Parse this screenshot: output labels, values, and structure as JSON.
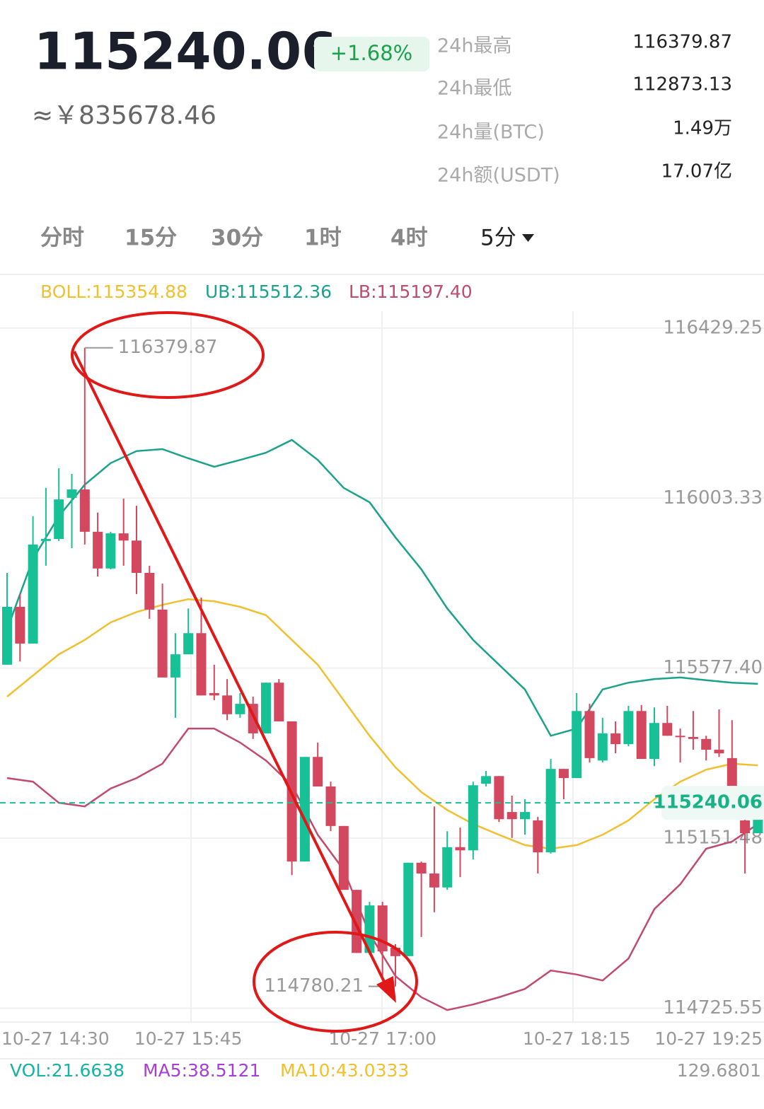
{
  "header": {
    "price": "115240.06",
    "change": "+1.68%",
    "cny": "≈￥835678.46",
    "stats": [
      {
        "label": "24h最高",
        "value": "116379.87"
      },
      {
        "label": "24h最低",
        "value": "112873.13"
      },
      {
        "label": "24h量(BTC)",
        "value": "1.49万"
      },
      {
        "label": "24h额(USDT)",
        "value": "17.07亿"
      }
    ],
    "tabs": [
      "分时",
      "15分",
      "30分",
      "1时",
      "4时",
      "5分"
    ]
  },
  "indicators": [
    "BOLL:115354.88",
    "UB:115512.36",
    "LB:115197.40"
  ],
  "volume": {
    "labels": [
      "VOL:21.6638",
      "MA5:38.5121",
      "MA10:43.0333"
    ],
    "axis_max": "129.6801"
  },
  "chart_data": {
    "type": "candlestick",
    "categories": [
      "10-27 14:30",
      null,
      null,
      null,
      null,
      null,
      null,
      null,
      null,
      null,
      null,
      null,
      null,
      null,
      "10-27 15:45",
      null,
      null,
      null,
      null,
      null,
      null,
      null,
      null,
      null,
      null,
      null,
      null,
      null,
      null,
      "10-27 17:00",
      null,
      null,
      null,
      null,
      null,
      null,
      null,
      null,
      null,
      null,
      null,
      null,
      null,
      null,
      "10-27 18:15",
      null,
      null,
      null,
      null,
      null,
      null,
      null,
      null,
      null,
      null,
      null,
      null,
      null,
      "10-27 19:25"
    ],
    "open": [
      115586,
      115731,
      115639,
      115896,
      115901,
      116004,
      116025,
      115919,
      115827,
      115915,
      115897,
      115816,
      115724,
      115554,
      115612,
      115665,
      115515,
      115509,
      115462,
      115488,
      115414,
      115541,
      115444,
      115093,
      115355,
      115281,
      115182,
      115022,
      114864,
      114983,
      114877,
      114856,
      115090,
      115063,
      115028,
      115129,
      115121,
      115288,
      115307,
      115217,
      115199,
      115196,
      115116,
      115325,
      115302,
      115470,
      115346,
      115414,
      115387,
      115470,
      115350,
      115440,
      115408,
      115405,
      115400,
      115373,
      115352,
      115196,
      115164
    ],
    "high": [
      115816,
      115763,
      115958,
      116029,
      116078,
      116064,
      116379.87,
      115967,
      115919,
      116002,
      115984,
      115834,
      115789,
      115665,
      115727,
      115754,
      115586,
      115550,
      115515,
      115506,
      115541,
      115550,
      115444,
      115355,
      115391,
      115293,
      115182,
      115022,
      114992,
      114992,
      114886,
      115090,
      115093,
      115231,
      115169,
      115178,
      115293,
      115320,
      115307,
      115258,
      115249,
      115205,
      115350,
      115325,
      115515,
      115488,
      115453,
      115444,
      115483,
      115485,
      115479,
      115483,
      115426,
      115470,
      115408,
      115474,
      115447,
      115214,
      115240.06
    ],
    "low": [
      115586,
      115594,
      115639,
      115834,
      115896,
      115878,
      115887,
      115807,
      115825,
      115834,
      115763,
      115701,
      115554,
      115453,
      115612,
      115509,
      115497,
      115447,
      115453,
      115400,
      115414,
      115444,
      115059,
      115093,
      115281,
      115169,
      115022,
      114864,
      114859,
      114806,
      114780.21,
      114856,
      114904,
      114966,
      115022,
      115054,
      115098,
      115281,
      115192,
      115152,
      115160,
      115063,
      115113,
      115249,
      115302,
      115341,
      115341,
      115364,
      115382,
      115350,
      115332,
      115408,
      115341,
      115373,
      115346,
      115355,
      115279,
      115063,
      115164
    ],
    "close": [
      115731,
      115639,
      115887,
      115901,
      116000,
      116025,
      115919,
      115827,
      115915,
      115897,
      115816,
      115724,
      115554,
      115612,
      115665,
      115509,
      115509,
      115462,
      115488,
      115414,
      115541,
      115444,
      115093,
      115355,
      115281,
      115182,
      115022,
      114864,
      114983,
      114868,
      114856,
      115090,
      115063,
      115028,
      115129,
      115121,
      115284,
      115307,
      115199,
      115199,
      115217,
      115116,
      115325,
      115302,
      115470,
      115352,
      115414,
      115387,
      115470,
      115350,
      115440,
      115408,
      115405,
      115400,
      115373,
      115364,
      115279,
      115164,
      115240.06
    ],
    "up_color": "#17c195",
    "down_color": "#d3475f",
    "lines": [
      {
        "name": "BOLL",
        "color": "#f0c030",
        "x": [
          0,
          2,
          4,
          6,
          8,
          10,
          12,
          14,
          16,
          18,
          20,
          22,
          24,
          26,
          28,
          30,
          32,
          34,
          36,
          38,
          40,
          42,
          44,
          46,
          48,
          50,
          52,
          54,
          56,
          58
        ],
        "values": [
          115506,
          115559,
          115612,
          115648,
          115692,
          115718,
          115736,
          115750,
          115745,
          115731,
          115710,
          115648,
          115586,
          115497,
          115408,
          115329,
          115267,
          115222,
          115187,
          115160,
          115134,
          115125,
          115134,
          115160,
          115196,
          115249,
          115293,
          115323,
          115338,
          115334
        ]
      },
      {
        "name": "UB",
        "color": "#1aa38a",
        "x": [
          0,
          2,
          4,
          6,
          8,
          10,
          12,
          14,
          16,
          18,
          20,
          22,
          24,
          26,
          28,
          30,
          32,
          34,
          36,
          38,
          40,
          42,
          44,
          46,
          48,
          50,
          52,
          54,
          56,
          58
        ],
        "values": [
          115674,
          115851,
          115958,
          116037,
          116091,
          116121,
          116126,
          116103,
          116082,
          116099,
          116117,
          116149,
          116099,
          116029,
          115993,
          115905,
          115825,
          115727,
          115648,
          115586,
          115524,
          115408,
          115426,
          115524,
          115541,
          115550,
          115554,
          115547,
          115541,
          115538
        ]
      },
      {
        "name": "LB",
        "color": "#c24a6c",
        "x": [
          0,
          2,
          4,
          6,
          8,
          10,
          12,
          14,
          16,
          18,
          20,
          22,
          24,
          26,
          28,
          30,
          32,
          34,
          36,
          38,
          40,
          42,
          44,
          46,
          48,
          50,
          52,
          54,
          56,
          58
        ],
        "values": [
          115302,
          115293,
          115240,
          115231,
          115276,
          115302,
          115338,
          115426,
          115426,
          115391,
          115346,
          115284,
          115160,
          115072,
          114912,
          114806,
          114753,
          114721,
          114735,
          114753,
          114774,
          114820,
          114810,
          114795,
          114850,
          114974,
          115036,
          115125,
          115143,
          115187
        ]
      }
    ],
    "ylim": [
      114691,
      116471.5
    ],
    "yticks": [
      116429.25,
      116003.33,
      {
        "value": 115577.4,
        "label": "115577.40"
      },
      115151.48,
      114725.55
    ],
    "grid": true
  }
}
